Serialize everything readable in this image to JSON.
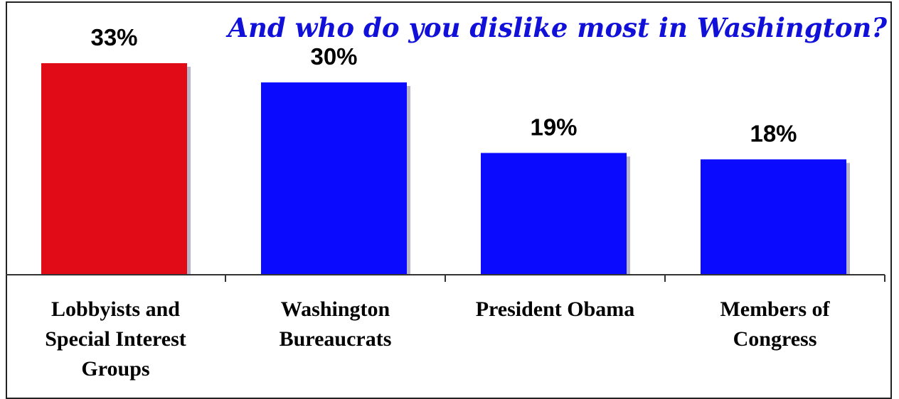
{
  "chart_data": {
    "type": "bar",
    "title": "And who do you dislike most in Washington?",
    "categories": [
      "Lobbyists and Special Interest Groups",
      "Washington Bureaucrats",
      "President Obama",
      "Members of Congress"
    ],
    "category_lines": [
      [
        "Lobbyists and",
        "Special Interest",
        "Groups"
      ],
      [
        "Washington",
        "Bureaucrats"
      ],
      [
        "President Obama"
      ],
      [
        "Members of",
        "Congress"
      ]
    ],
    "values": [
      33,
      30,
      19,
      18
    ],
    "value_labels": [
      "33%",
      "30%",
      "19%",
      "18%"
    ],
    "unit": "%",
    "xlabel": "",
    "ylabel": "",
    "ylim": [
      0,
      35
    ],
    "grid": false,
    "legend": "none",
    "colors": {
      "highlight": "#e00b17",
      "bar": "#0a0aff",
      "shadow": "#b8b5c8",
      "title": "#1010d8",
      "axis": "#333333"
    },
    "highlight_index": 0
  }
}
